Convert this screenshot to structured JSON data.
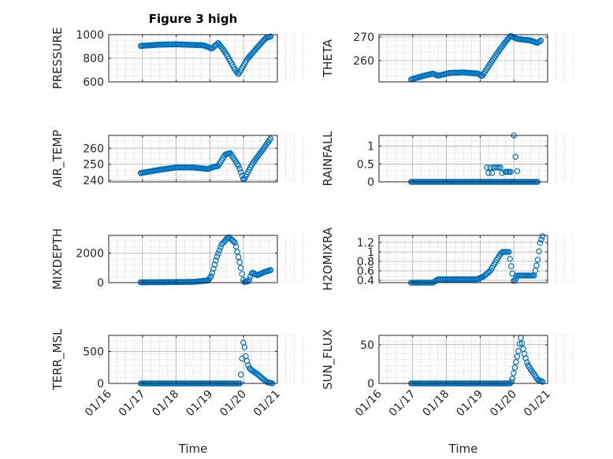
{
  "figure": {
    "title": "Figure 3 high",
    "xlabel": "Time",
    "xticks": [
      "01/16",
      "01/17",
      "01/18",
      "01/19",
      "01/20",
      "01/21"
    ]
  },
  "colors": {
    "marker": "#0072bd",
    "axis": "#262626",
    "grid": "#b0b0b0"
  },
  "chart_data": [
    {
      "type": "scatter",
      "ylabel": "PRESSURE",
      "grid": true,
      "ylim": [
        600,
        1000
      ],
      "yticks": [
        "600",
        "800",
        "1000"
      ],
      "ytick_values": [
        600,
        800,
        1000
      ],
      "xlim": [
        0,
        5
      ],
      "knots": [
        [
          0.95,
          905
        ],
        [
          1.5,
          915
        ],
        [
          2.0,
          918
        ],
        [
          2.8,
          910
        ],
        [
          2.95,
          895
        ],
        [
          3.05,
          880
        ],
        [
          3.25,
          930
        ],
        [
          3.5,
          830
        ],
        [
          3.75,
          700
        ],
        [
          3.85,
          665
        ],
        [
          4.1,
          790
        ],
        [
          4.4,
          890
        ],
        [
          4.65,
          970
        ],
        [
          4.8,
          985
        ]
      ]
    },
    {
      "type": "scatter",
      "ylabel": "THETA",
      "grid": true,
      "ylim": [
        251,
        271
      ],
      "yticks": [
        "260",
        "270"
      ],
      "ytick_values": [
        260,
        270
      ],
      "xlim": [
        0,
        5
      ],
      "knots": [
        [
          0.95,
          252
        ],
        [
          1.3,
          253.5
        ],
        [
          1.6,
          254.5
        ],
        [
          1.75,
          253.6
        ],
        [
          2.1,
          254.8
        ],
        [
          2.5,
          255
        ],
        [
          2.95,
          254.5
        ],
        [
          3.05,
          253.3
        ],
        [
          3.5,
          263
        ],
        [
          3.7,
          267
        ],
        [
          3.9,
          270.5
        ],
        [
          4.1,
          269.2
        ],
        [
          4.5,
          268.5
        ],
        [
          4.7,
          267.5
        ],
        [
          4.8,
          268.5
        ]
      ]
    },
    {
      "type": "scatter",
      "ylabel": "AIR_TEMP",
      "grid": true,
      "ylim": [
        239,
        268
      ],
      "yticks": [
        "240",
        "250",
        "260"
      ],
      "ytick_values": [
        240,
        250,
        260
      ],
      "xlim": [
        0,
        5
      ],
      "knots": [
        [
          0.95,
          244.5
        ],
        [
          1.5,
          246.5
        ],
        [
          2.0,
          248
        ],
        [
          2.5,
          248
        ],
        [
          2.95,
          247
        ],
        [
          3.05,
          248
        ],
        [
          3.25,
          249
        ],
        [
          3.45,
          256
        ],
        [
          3.6,
          257
        ],
        [
          3.85,
          249
        ],
        [
          4.0,
          240
        ],
        [
          4.25,
          250
        ],
        [
          4.6,
          260
        ],
        [
          4.8,
          266
        ]
      ]
    },
    {
      "type": "scatter",
      "ylabel": "RAINFALL",
      "grid": true,
      "ylim": [
        0,
        1.3
      ],
      "yticks": [
        "0",
        "0.5",
        "1"
      ],
      "ytick_values": [
        0,
        0.5,
        1
      ],
      "xlim": [
        0,
        5
      ],
      "knots": [
        [
          0.95,
          0
        ],
        [
          3.1,
          0
        ],
        [
          3.8,
          0
        ],
        [
          4.7,
          0
        ]
      ],
      "extra_points": [
        [
          3.2,
          0.4
        ],
        [
          3.25,
          0.25
        ],
        [
          3.3,
          0.4
        ],
        [
          3.35,
          0.25
        ],
        [
          3.4,
          0.4
        ],
        [
          3.45,
          0.4
        ],
        [
          3.5,
          0.4
        ],
        [
          3.55,
          0.4
        ],
        [
          3.6,
          0.4
        ],
        [
          3.65,
          0.25
        ],
        [
          3.7,
          0
        ],
        [
          3.72,
          0
        ],
        [
          3.75,
          0.28
        ],
        [
          3.78,
          0.28
        ],
        [
          3.82,
          0.28
        ],
        [
          3.86,
          0.28
        ],
        [
          3.9,
          0.28
        ],
        [
          3.95,
          0
        ],
        [
          4.0,
          1.3
        ],
        [
          4.05,
          0.7
        ],
        [
          4.1,
          0.3
        ]
      ]
    },
    {
      "type": "scatter",
      "ylabel": "MIXDEPTH",
      "grid": true,
      "ylim": [
        0,
        3200
      ],
      "yticks": [
        "0",
        "2000"
      ],
      "ytick_values": [
        0,
        2000
      ],
      "xlim": [
        0,
        5
      ],
      "knots": [
        [
          0.95,
          20
        ],
        [
          2.5,
          50
        ],
        [
          2.95,
          150
        ],
        [
          3.05,
          500
        ],
        [
          3.2,
          1700
        ],
        [
          3.35,
          2600
        ],
        [
          3.55,
          3100
        ],
        [
          3.75,
          2700
        ],
        [
          3.9,
          1200
        ],
        [
          4.0,
          30
        ],
        [
          4.15,
          100
        ],
        [
          4.25,
          700
        ],
        [
          4.4,
          500
        ],
        [
          4.6,
          700
        ],
        [
          4.8,
          850
        ]
      ]
    },
    {
      "type": "scatter",
      "ylabel": "H2OMIXRA",
      "grid": true,
      "ylim": [
        0.35,
        1.35
      ],
      "yticks": [
        "0.4",
        "0.6",
        "0.8",
        "1",
        "1.2"
      ],
      "ytick_values": [
        0.4,
        0.6,
        0.8,
        1.0,
        1.2
      ],
      "xlim": [
        0,
        5
      ],
      "knots": [
        [
          0.95,
          0.35
        ],
        [
          1.6,
          0.35
        ],
        [
          1.75,
          0.42
        ],
        [
          2.5,
          0.42
        ],
        [
          2.9,
          0.42
        ],
        [
          3.1,
          0.48
        ],
        [
          3.3,
          0.6
        ],
        [
          3.55,
          0.9
        ],
        [
          3.65,
          1.0
        ],
        [
          3.85,
          1.0
        ],
        [
          4.0,
          0.35
        ],
        [
          4.1,
          0.5
        ],
        [
          4.4,
          0.5
        ],
        [
          4.6,
          0.5
        ],
        [
          4.7,
          0.8
        ],
        [
          4.78,
          1.2
        ],
        [
          4.85,
          1.33
        ]
      ]
    },
    {
      "type": "scatter",
      "ylabel": "TERR_MSL",
      "grid": true,
      "ylim": [
        0,
        750
      ],
      "yticks": [
        "0",
        "500"
      ],
      "ytick_values": [
        0,
        500
      ],
      "xlim": [
        0,
        5
      ],
      "knots": [
        [
          0.95,
          0
        ],
        [
          3.9,
          0
        ],
        [
          4.0,
          700
        ],
        [
          4.05,
          450
        ],
        [
          4.15,
          250
        ],
        [
          4.25,
          200
        ],
        [
          4.4,
          150
        ],
        [
          4.55,
          80
        ],
        [
          4.7,
          20
        ],
        [
          4.85,
          0
        ]
      ]
    },
    {
      "type": "scatter",
      "ylabel": "SUN_FLUX",
      "grid": true,
      "ylim": [
        0,
        62
      ],
      "yticks": [
        "0",
        "50"
      ],
      "ytick_values": [
        0,
        50
      ],
      "xlim": [
        0,
        5
      ],
      "knots": [
        [
          0.95,
          0
        ],
        [
          3.9,
          0
        ],
        [
          3.95,
          5
        ],
        [
          4.05,
          25
        ],
        [
          4.15,
          45
        ],
        [
          4.2,
          60
        ],
        [
          4.3,
          40
        ],
        [
          4.4,
          25
        ],
        [
          4.5,
          18
        ],
        [
          4.6,
          12
        ],
        [
          4.7,
          5
        ],
        [
          4.85,
          2
        ]
      ]
    }
  ]
}
